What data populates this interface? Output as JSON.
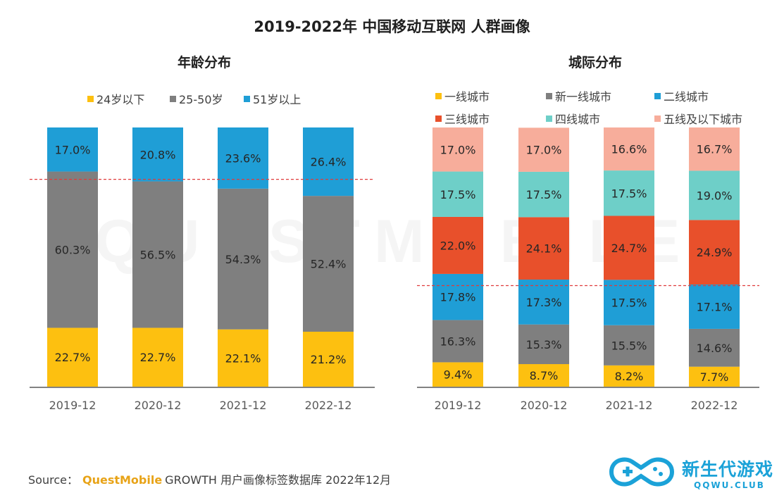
{
  "title": "2019-2022年 中国移动互联网 人群画像",
  "watermark": "QUESTMOBILE",
  "source": {
    "prefix": "Source：",
    "brand": "QuestMobile",
    "suffix": "GROWTH 用户画像标签数据库 2022年12月"
  },
  "logo": {
    "text": "新生代游戏",
    "subtext": "QQWU.CLUB"
  },
  "colors": {
    "yellow": "#fdc010",
    "gray": "#7f7f7f",
    "blue": "#1f9ed6",
    "red": "#e8502b",
    "teal": "#6ecfc8",
    "salmon": "#f7ad9b",
    "guide": "#e03b3b"
  },
  "chart_data": [
    {
      "type": "bar",
      "stacked": true,
      "title": "年龄分布",
      "categories": [
        "2019-12",
        "2020-12",
        "2021-12",
        "2022-12"
      ],
      "ylim": [
        0,
        100
      ],
      "reference_line": 80,
      "series": [
        {
          "name": "24岁以下",
          "color_key": "yellow",
          "values": [
            22.7,
            22.7,
            22.1,
            21.2
          ],
          "labels": [
            "22.7%",
            "22.7%",
            "22.1%",
            "21.2%"
          ]
        },
        {
          "name": "25-50岁",
          "color_key": "gray",
          "values": [
            60.3,
            56.5,
            54.3,
            52.4
          ],
          "labels": [
            "60.3%",
            "56.5%",
            "54.3%",
            "52.4%"
          ]
        },
        {
          "name": "51岁以上",
          "color_key": "blue",
          "values": [
            17.0,
            20.8,
            23.6,
            26.4
          ],
          "labels": [
            "17.0%",
            "20.8%",
            "23.6%",
            "26.4%"
          ]
        }
      ]
    },
    {
      "type": "bar",
      "stacked": true,
      "title": "城际分布",
      "categories": [
        "2019-12",
        "2020-12",
        "2021-12",
        "2022-12"
      ],
      "ylim": [
        0,
        100
      ],
      "reference_line": 39,
      "series": [
        {
          "name": "一线城市",
          "color_key": "yellow",
          "values": [
            9.4,
            8.7,
            8.2,
            7.7
          ],
          "labels": [
            "9.4%",
            "8.7%",
            "8.2%",
            "7.7%"
          ]
        },
        {
          "name": "新一线城市",
          "color_key": "gray",
          "values": [
            16.3,
            15.3,
            15.5,
            14.6
          ],
          "labels": [
            "16.3%",
            "15.3%",
            "15.5%",
            "14.6%"
          ]
        },
        {
          "name": "二线城市",
          "color_key": "blue",
          "values": [
            17.8,
            17.3,
            17.5,
            17.1
          ],
          "labels": [
            "17.8%",
            "17.3%",
            "17.5%",
            "17.1%"
          ]
        },
        {
          "name": "三线城市",
          "color_key": "red",
          "values": [
            22.0,
            24.1,
            24.7,
            24.9
          ],
          "labels": [
            "22.0%",
            "24.1%",
            "24.7%",
            "24.9%"
          ]
        },
        {
          "name": "四线城市",
          "color_key": "teal",
          "values": [
            17.5,
            17.5,
            17.5,
            19.0
          ],
          "labels": [
            "17.5%",
            "17.5%",
            "17.5%",
            "19.0%"
          ]
        },
        {
          "name": "五线及以下城市",
          "color_key": "salmon",
          "values": [
            17.0,
            17.0,
            16.6,
            16.7
          ],
          "labels": [
            "17.0%",
            "17.0%",
            "16.6%",
            "16.7%"
          ]
        }
      ]
    }
  ]
}
